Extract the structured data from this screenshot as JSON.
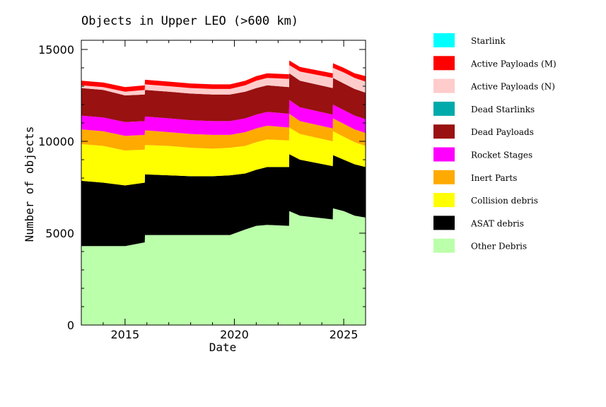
{
  "chart_data": {
    "type": "area",
    "title": "Objects in Upper LEO (>600 km)",
    "xlabel": "Date",
    "ylabel": "Number of objects",
    "xlim": [
      2013.0,
      2026.0
    ],
    "ylim": [
      0,
      15500
    ],
    "x_ticks": [
      2015,
      2020,
      2025
    ],
    "y_ticks": [
      0,
      5000,
      10000,
      15000
    ],
    "x_tick_labels": [
      "2015",
      "2020",
      "2025"
    ],
    "y_tick_labels": [
      "0",
      "5000",
      "10000",
      "15000"
    ],
    "stacked": true,
    "legend_position": "right",
    "x": [
      2013.0,
      2014.0,
      2015.0,
      2015.01,
      2015.9,
      2015.91,
      2017.0,
      2018.0,
      2019.0,
      2019.8,
      2020.5,
      2021.0,
      2021.5,
      2022.5,
      2022.51,
      2023.0,
      2024.5,
      2024.51,
      2025.0,
      2025.5,
      2026.0
    ],
    "series": [
      {
        "name": "Other Debris",
        "color": "#bbffaa",
        "values": [
          4300,
          4300,
          4300,
          4300,
          4500,
          4900,
          4900,
          4900,
          4900,
          4900,
          5200,
          5400,
          5450,
          5400,
          6200,
          5950,
          5750,
          6350,
          6200,
          5950,
          5850
        ]
      },
      {
        "name": "ASAT debris",
        "color": "#000000",
        "values": [
          3550,
          3450,
          3300,
          3300,
          3250,
          3300,
          3250,
          3200,
          3200,
          3250,
          3050,
          3050,
          3150,
          3200,
          3100,
          3050,
          2900,
          2900,
          2800,
          2800,
          2750
        ]
      },
      {
        "name": "Collision debris",
        "color": "#ffff00",
        "values": [
          2000,
          2000,
          1900,
          1900,
          1800,
          1600,
          1600,
          1550,
          1500,
          1500,
          1500,
          1500,
          1500,
          1450,
          1450,
          1400,
          1350,
          1300,
          1250,
          1200,
          1150
        ]
      },
      {
        "name": "Inert Parts",
        "color": "#ffaa00",
        "values": [
          800,
          800,
          800,
          800,
          800,
          800,
          750,
          750,
          750,
          700,
          750,
          750,
          750,
          700,
          750,
          700,
          700,
          700,
          700,
          700,
          700
        ]
      },
      {
        "name": "Rocket Stages",
        "color": "#ff00ff",
        "values": [
          750,
          750,
          750,
          750,
          750,
          750,
          750,
          750,
          750,
          750,
          750,
          750,
          750,
          750,
          750,
          750,
          750,
          750,
          750,
          750,
          750
        ]
      },
      {
        "name": "Dead Payloads",
        "color": "#991111",
        "values": [
          1500,
          1500,
          1450,
          1450,
          1450,
          1450,
          1450,
          1450,
          1450,
          1450,
          1450,
          1450,
          1450,
          1450,
          1450,
          1450,
          1450,
          1450,
          1450,
          1450,
          1450
        ]
      },
      {
        "name": "Dead Starlinks",
        "color": "#00aaaa",
        "values": [
          0,
          0,
          0,
          0,
          0,
          0,
          0,
          0,
          0,
          0,
          0,
          0,
          0,
          0,
          0,
          0,
          0,
          0,
          0,
          0,
          0
        ]
      },
      {
        "name": "Active Payloads (N)",
        "color": "#ffcccc",
        "values": [
          150,
          150,
          200,
          200,
          250,
          300,
          300,
          300,
          300,
          300,
          350,
          400,
          400,
          450,
          450,
          500,
          550,
          550,
          600,
          600,
          600
        ]
      },
      {
        "name": "Active Payloads (M)",
        "color": "#ff0000",
        "values": [
          250,
          250,
          250,
          250,
          250,
          250,
          250,
          250,
          250,
          250,
          250,
          250,
          250,
          250,
          250,
          250,
          250,
          250,
          250,
          250,
          300
        ]
      },
      {
        "name": "Starlink",
        "color": "#00ffff",
        "values": [
          0,
          0,
          0,
          0,
          0,
          0,
          0,
          0,
          0,
          0,
          0,
          0,
          0,
          0,
          0,
          0,
          0,
          0,
          0,
          0,
          0
        ]
      }
    ],
    "legend": [
      {
        "label": "Starlink",
        "color": "#00ffff"
      },
      {
        "label": "Active Payloads (M)",
        "color": "#ff0000"
      },
      {
        "label": "Active Payloads (N)",
        "color": "#ffcccc"
      },
      {
        "label": "Dead Starlinks",
        "color": "#00aaaa"
      },
      {
        "label": "Dead Payloads",
        "color": "#991111"
      },
      {
        "label": "Rocket Stages",
        "color": "#ff00ff"
      },
      {
        "label": "Inert Parts",
        "color": "#ffaa00"
      },
      {
        "label": "Collision debris",
        "color": "#ffff00"
      },
      {
        "label": "ASAT debris",
        "color": "#000000"
      },
      {
        "label": "Other Debris",
        "color": "#bbffaa"
      }
    ]
  }
}
